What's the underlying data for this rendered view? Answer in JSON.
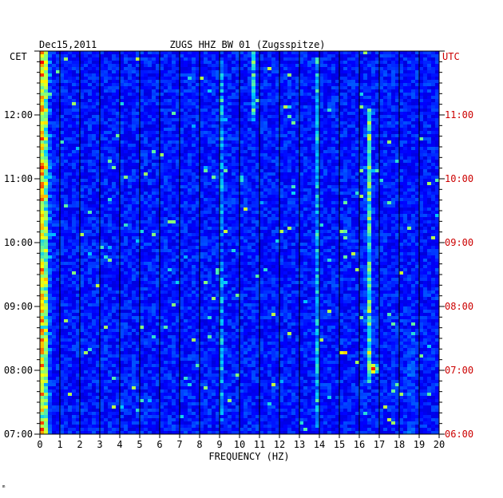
{
  "chart_data": {
    "type": "heatmap",
    "title": "ZUGS HHZ BW 01 (Zugsspitze)",
    "date": "Dec15,2011",
    "left_axis_title": "CET",
    "right_axis_title": "UTC",
    "xlabel": "FREQUENCY (HZ)",
    "xlim": [
      0,
      20
    ],
    "x_ticks": [
      "0",
      "1",
      "2",
      "3",
      "4",
      "5",
      "6",
      "7",
      "8",
      "9",
      "10",
      "11",
      "12",
      "13",
      "14",
      "15",
      "16",
      "17",
      "18",
      "19",
      "20"
    ],
    "y_ticks_cet": [
      "07:00",
      "08:00",
      "09:00",
      "10:00",
      "11:00",
      "12:00"
    ],
    "y_ticks_utc": [
      "06:00",
      "07:00",
      "08:00",
      "09:00",
      "10:00",
      "11:00"
    ],
    "time_range_cet_hours": [
      7.0,
      13.0
    ],
    "colormap": [
      "#00007f",
      "#0000ff",
      "#00c8ff",
      "#80ff80",
      "#ffff00",
      "#ff8000",
      "#ff0000"
    ],
    "background": "#0a10b0",
    "utc_color": "#cc0000",
    "hotspots": [
      {
        "f": 0.1,
        "t": 7.0,
        "t_end": 13.0,
        "intensity": 0.85
      },
      {
        "f": 0.3,
        "t": 7.0,
        "t_end": 13.0,
        "intensity": 0.65
      },
      {
        "f": 9.1,
        "t": 7.2,
        "t_end": 12.9,
        "intensity": 0.35
      },
      {
        "f": 10.7,
        "t": 11.9,
        "t_end": 13.0,
        "intensity": 0.45
      },
      {
        "f": 13.9,
        "t": 7.1,
        "t_end": 12.9,
        "intensity": 0.4
      },
      {
        "f": 16.5,
        "t": 7.8,
        "t_end": 12.1,
        "intensity": 0.55
      },
      {
        "f": 16.7,
        "t": 7.95,
        "t_end": 8.1,
        "intensity": 0.95
      },
      {
        "f": 15.2,
        "t": 8.25,
        "t_end": 8.28,
        "intensity": 0.9
      },
      {
        "f": 18.6,
        "t": 7.0,
        "t_end": 8.9,
        "intensity": 0.35
      }
    ]
  },
  "footer_mark": "ᵐ"
}
